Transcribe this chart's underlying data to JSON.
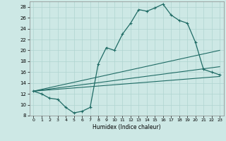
{
  "title": "",
  "xlabel": "Humidex (Indice chaleur)",
  "xlim": [
    -0.5,
    23.5
  ],
  "ylim": [
    8,
    29
  ],
  "yticks": [
    8,
    10,
    12,
    14,
    16,
    18,
    20,
    22,
    24,
    26,
    28
  ],
  "xticks": [
    0,
    1,
    2,
    3,
    4,
    5,
    6,
    7,
    8,
    9,
    10,
    11,
    12,
    13,
    14,
    15,
    16,
    17,
    18,
    19,
    20,
    21,
    22,
    23
  ],
  "bg_color": "#cde8e5",
  "line_color": "#1f6b65",
  "line1_x": [
    0,
    1,
    2,
    3,
    4,
    5,
    6,
    7,
    8,
    9,
    10,
    11,
    12,
    13,
    14,
    15,
    16,
    17,
    18,
    19,
    20,
    21,
    22,
    23
  ],
  "line1_y": [
    12.5,
    12.0,
    11.2,
    11.0,
    9.5,
    8.5,
    8.8,
    9.5,
    17.5,
    20.5,
    20.0,
    23.0,
    25.0,
    27.5,
    27.2,
    27.8,
    28.5,
    26.5,
    25.5,
    25.0,
    21.5,
    16.5,
    16.0,
    15.5
  ],
  "line2_x": [
    0,
    23
  ],
  "line2_y": [
    12.5,
    20.0
  ],
  "line3_x": [
    0,
    23
  ],
  "line3_y": [
    12.5,
    17.0
  ],
  "line4_x": [
    0,
    23
  ],
  "line4_y": [
    12.5,
    15.2
  ],
  "grid_color": "#b0d4d0"
}
